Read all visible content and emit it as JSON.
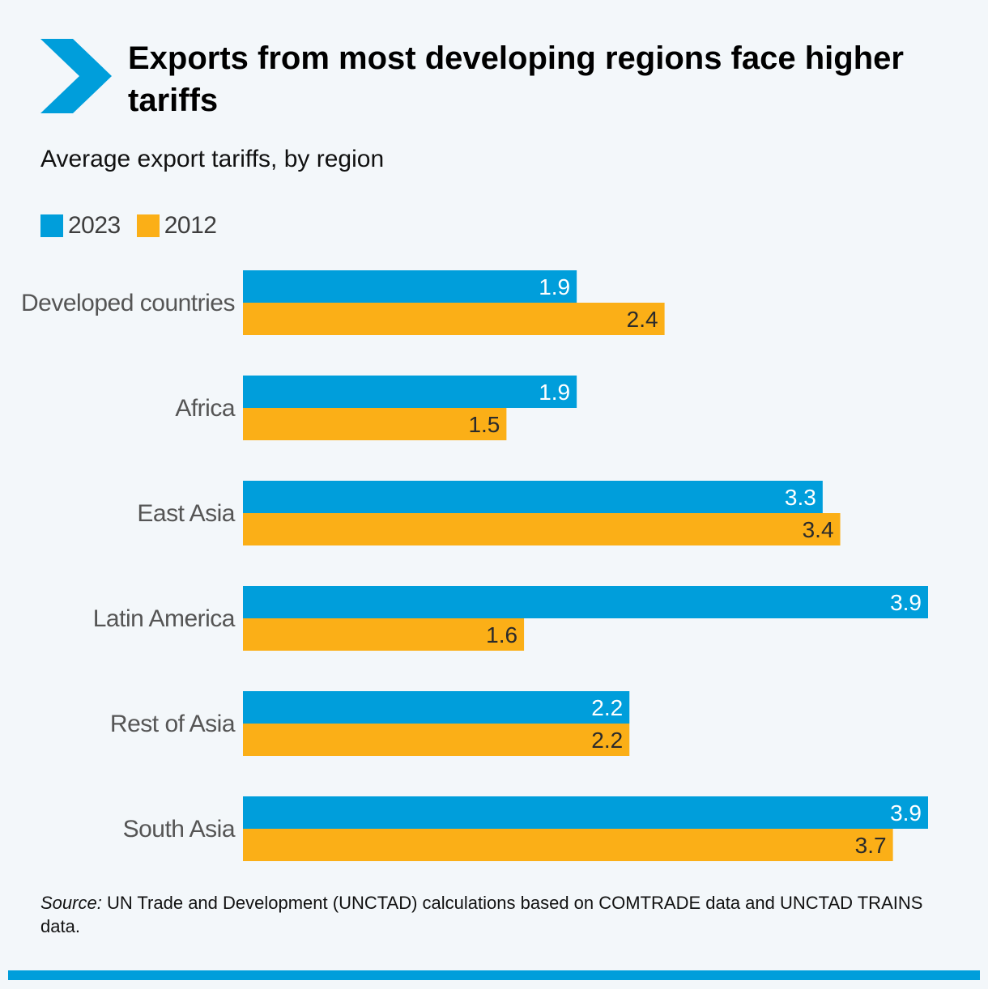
{
  "header": {
    "icon": "chevron-right-icon",
    "title": "Exports from most developing regions face higher tariffs",
    "subtitle": "Average export tariffs, by region"
  },
  "colors": {
    "series_2023": "#009edb",
    "series_2012": "#fbaf17",
    "accent": "#009edb",
    "background": "#f3f7fa"
  },
  "legend": [
    {
      "label": "2023",
      "color": "#009edb"
    },
    {
      "label": "2012",
      "color": "#fbaf17"
    }
  ],
  "chart_data": {
    "type": "bar",
    "orientation": "horizontal",
    "title": "Average export tariffs, by region",
    "xlabel": "",
    "ylabel": "",
    "xlim": [
      0,
      4
    ],
    "grid": false,
    "legend_position": "top-left",
    "categories": [
      "Developed countries",
      "Africa",
      "East Asia",
      "Latin America",
      "Rest of Asia",
      "South Asia"
    ],
    "series": [
      {
        "name": "2023",
        "color": "#009edb",
        "label_color": "#ffffff",
        "values": [
          1.9,
          1.9,
          3.3,
          3.9,
          2.2,
          3.9
        ]
      },
      {
        "name": "2012",
        "color": "#fbaf17",
        "label_color": "#2b2b2b",
        "values": [
          2.4,
          1.5,
          3.4,
          1.6,
          2.2,
          3.7
        ]
      }
    ]
  },
  "source": {
    "prefix": "Source:",
    "text": " UN Trade and Development (UNCTAD) calculations based on COMTRADE data and UNCTAD TRAINS data."
  }
}
